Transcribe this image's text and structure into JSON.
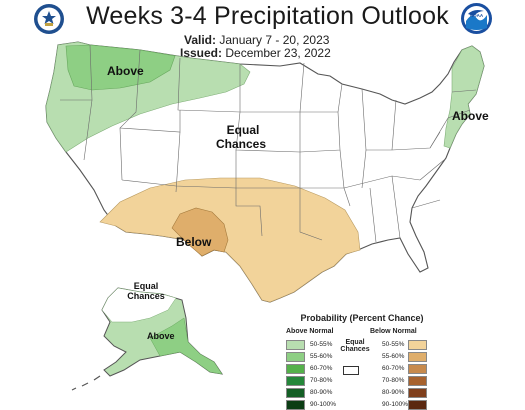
{
  "title": "Weeks 3-4 Precipitation Outlook",
  "valid": {
    "label": "Valid:",
    "value": "January 7 - 20, 2023"
  },
  "issued": {
    "label": "Issued:",
    "value": "December 23, 2022"
  },
  "logos": {
    "left": "doc-seal-icon",
    "right": "noaa-logo-icon",
    "right_text": "NOAA"
  },
  "map_labels": {
    "above_nw": "Above",
    "equal_chances": [
      "Equal",
      "Chances"
    ],
    "above_ne": "Above",
    "below_sw": "Below",
    "alaska_equal": [
      "Equal",
      "Chances"
    ],
    "alaska_above": "Above"
  },
  "legend": {
    "title": "Probability (Percent Chance)",
    "above_header": "Above Normal",
    "below_header": "Below Normal",
    "equal_label": [
      "Equal",
      "Chances"
    ],
    "above": [
      {
        "label": "50-55%",
        "color": "#b8deb0"
      },
      {
        "label": "55-60%",
        "color": "#8ecf84"
      },
      {
        "label": "60-70%",
        "color": "#55b14b"
      },
      {
        "label": "70-80%",
        "color": "#25873a"
      },
      {
        "label": "80-90%",
        "color": "#145f25"
      },
      {
        "label": "90-100%",
        "color": "#0b3d14"
      }
    ],
    "below": [
      {
        "label": "50-55%",
        "color": "#f2d39a"
      },
      {
        "label": "55-60%",
        "color": "#dfae6b"
      },
      {
        "label": "60-70%",
        "color": "#c78a4d"
      },
      {
        "label": "70-80%",
        "color": "#a7622e"
      },
      {
        "label": "80-90%",
        "color": "#7f3f1c"
      },
      {
        "label": "90-100%",
        "color": "#5a2810"
      }
    ]
  },
  "colors": {
    "above_50_55": "#b8deb0",
    "above_55_60": "#8ecf84",
    "below_50_55": "#f2d39a",
    "below_55_60": "#dfae6b",
    "borders": "#6b6b6b"
  }
}
